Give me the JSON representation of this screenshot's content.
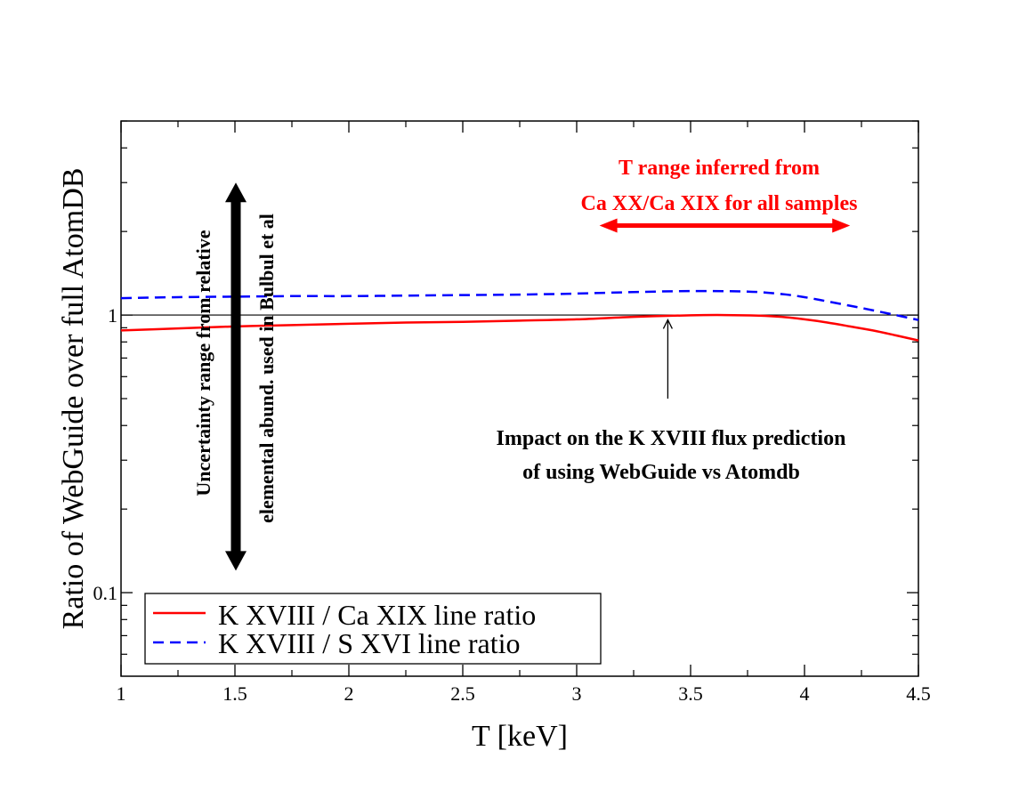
{
  "chart_data": {
    "type": "line",
    "title": "",
    "xlabel": "T [keV]",
    "ylabel": "Ratio of WebGuide over full AtomDB",
    "xlim": [
      1,
      4.5
    ],
    "ylim": [
      0.05,
      5
    ],
    "yscale": "log",
    "x_ticks": [
      {
        "value": 1,
        "label": "1"
      },
      {
        "value": 1.5,
        "label": "1.5"
      },
      {
        "value": 2,
        "label": "2"
      },
      {
        "value": 2.5,
        "label": "2.5"
      },
      {
        "value": 3,
        "label": "3"
      },
      {
        "value": 3.5,
        "label": "3.5"
      },
      {
        "value": 4,
        "label": "4"
      },
      {
        "value": 4.5,
        "label": "4.5"
      }
    ],
    "y_ticks": [
      {
        "value": 0.1,
        "label": "0.1"
      },
      {
        "value": 1,
        "label": "1"
      }
    ],
    "reference_line": {
      "y": 1,
      "color": "#000000"
    },
    "series": [
      {
        "name": "K XVIII / Ca XIX line ratio",
        "color": "#ff0000",
        "style": "solid",
        "x": [
          1.0,
          1.25,
          1.5,
          1.75,
          2.0,
          2.25,
          2.5,
          2.75,
          3.0,
          3.25,
          3.5,
          3.65,
          3.8,
          3.9,
          4.0,
          4.1,
          4.2,
          4.3,
          4.4,
          4.5
        ],
        "y": [
          0.88,
          0.895,
          0.91,
          0.92,
          0.93,
          0.94,
          0.945,
          0.955,
          0.965,
          0.985,
          0.998,
          1.0,
          0.995,
          0.985,
          0.965,
          0.94,
          0.91,
          0.88,
          0.845,
          0.81
        ]
      },
      {
        "name": "K XVIII / S XVI line ratio",
        "color": "#0000ff",
        "style": "dashed",
        "x": [
          1.0,
          1.25,
          1.5,
          1.75,
          2.0,
          2.25,
          2.5,
          2.75,
          3.0,
          3.25,
          3.5,
          3.75,
          3.9,
          4.0,
          4.1,
          4.2,
          4.3,
          4.4,
          4.5
        ],
        "y": [
          1.15,
          1.16,
          1.165,
          1.17,
          1.17,
          1.175,
          1.18,
          1.185,
          1.195,
          1.21,
          1.22,
          1.215,
          1.19,
          1.16,
          1.12,
          1.08,
          1.04,
          1.0,
          0.96
        ]
      }
    ],
    "annotations": {
      "uncertainty_line1": "Uncertainty range from relative",
      "uncertainty_line2": "elemental abund. used in Bulbul et al",
      "uncertainty_range": [
        0.12,
        3.0
      ],
      "uncertainty_x": 1.5,
      "t_range_line1": "T range inferred from",
      "t_range_line2": "Ca XX/Ca XIX for all samples",
      "t_range": [
        3.1,
        4.2
      ],
      "t_range_y": 2.1,
      "impact_line1": "Impact on the K XVIII flux prediction",
      "impact_line2": "of using WebGuide vs Atomdb",
      "impact_arrow_x": 3.4,
      "impact_arrow_from_y": 0.5,
      "impact_arrow_to_y": 0.99
    },
    "legend_position": "bottom-left"
  }
}
